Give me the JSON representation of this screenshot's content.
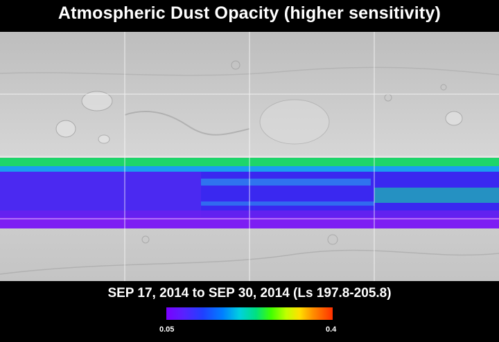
{
  "title": "Atmospheric Dust Opacity (higher sensitivity)",
  "subtitle": "SEP 17, 2014 to SEP 30, 2014 (Ls 197.8-205.8)",
  "colorbar": {
    "min_label": "0.05",
    "max_label": "0.4",
    "colors": [
      "#7a00ff",
      "#2040ff",
      "#0080ff",
      "#00d0e0",
      "#00e080",
      "#40ff00",
      "#c0ff00",
      "#ffe000",
      "#ff9000",
      "#ff3000"
    ]
  },
  "map": {
    "projection": "cylindrical",
    "basemap": "Mars shaded relief (grayscale)",
    "grid": true
  }
}
